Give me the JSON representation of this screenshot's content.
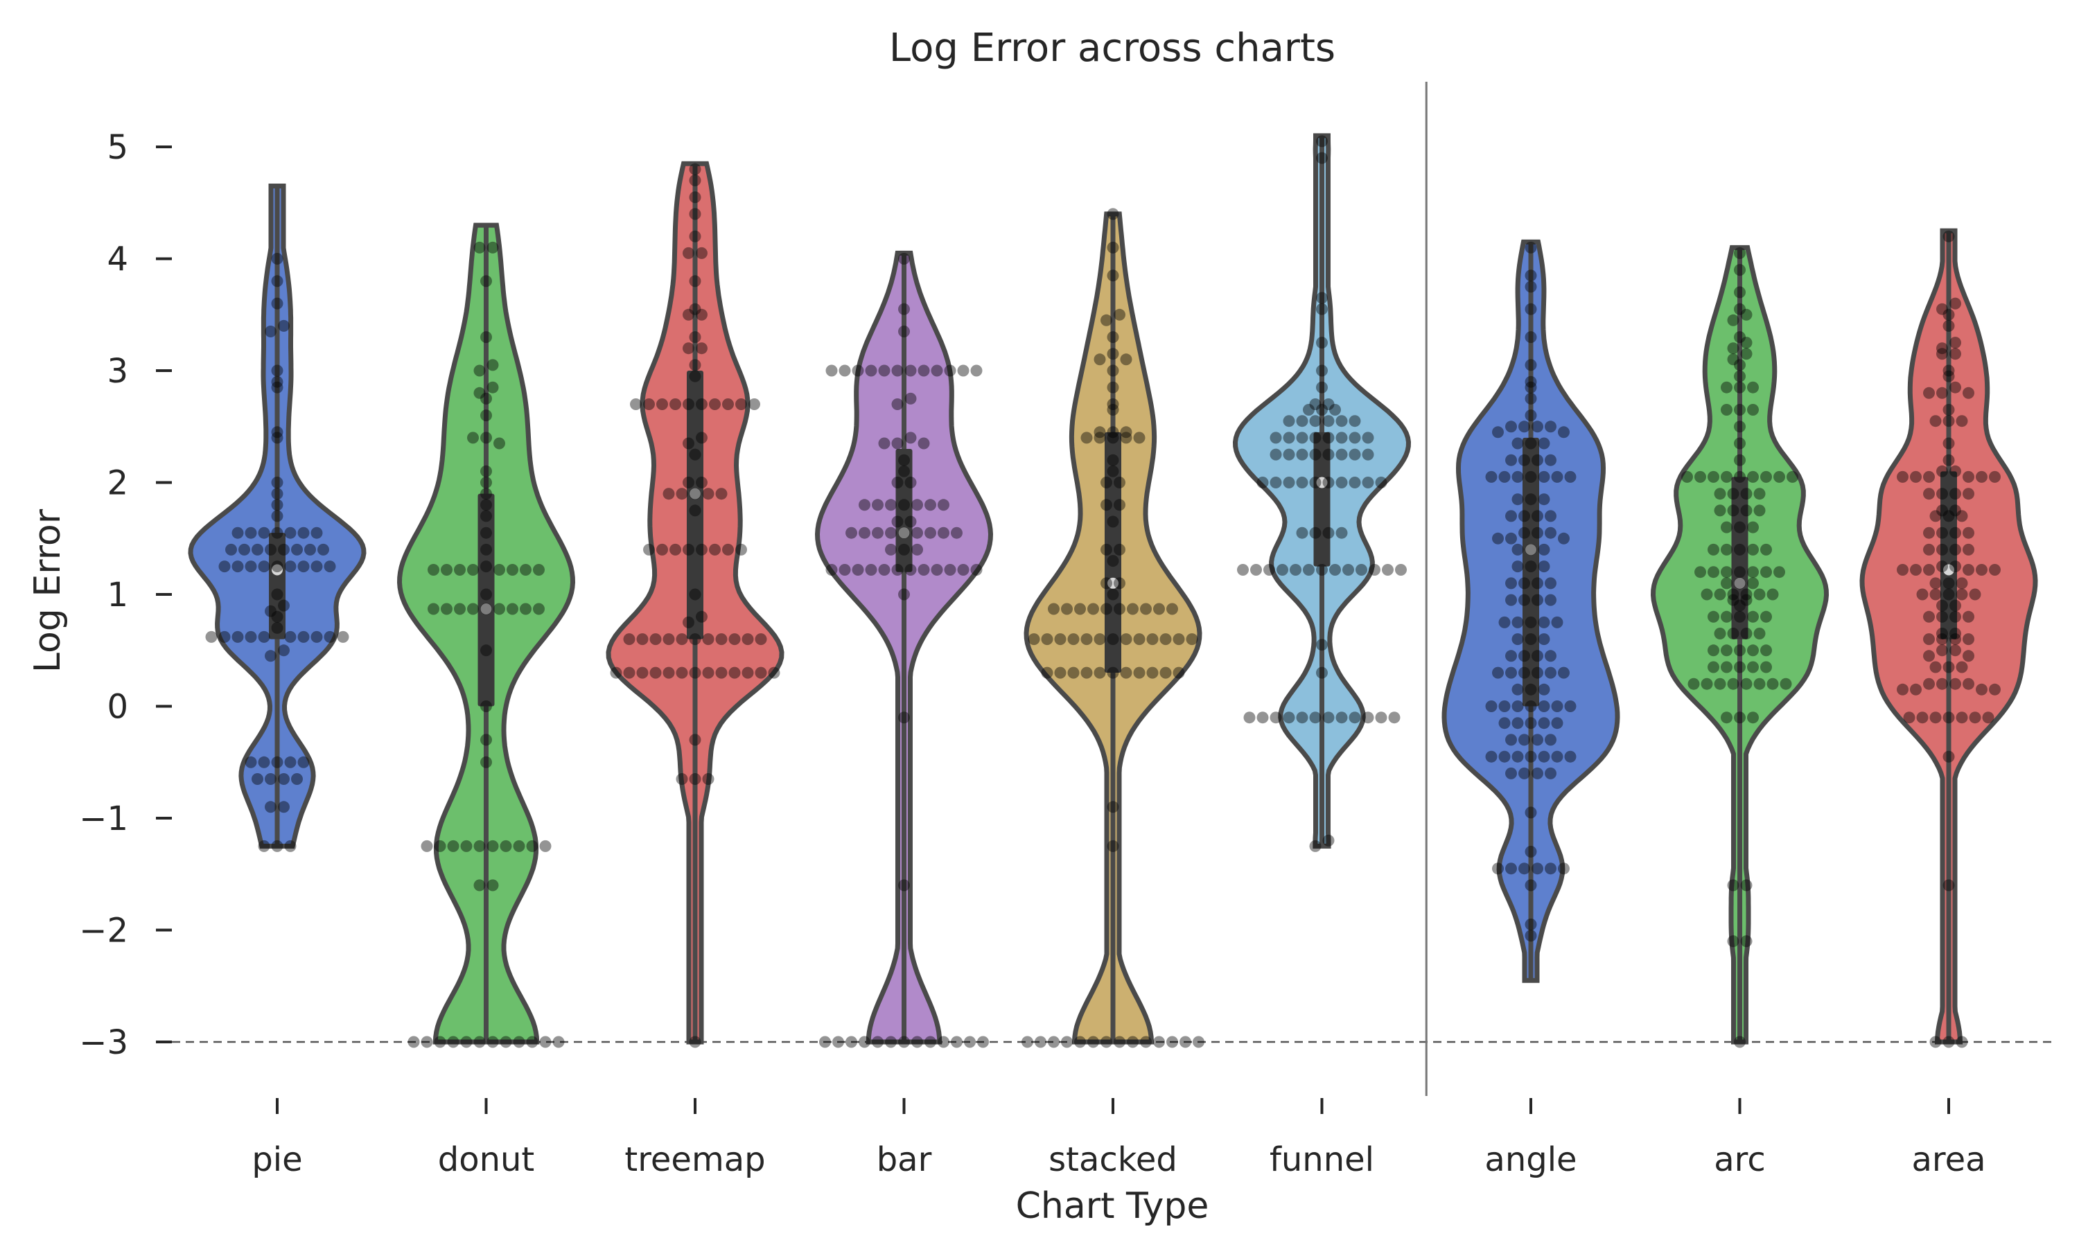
{
  "chart_data": {
    "type": "violin",
    "title": "Log Error across charts",
    "xlabel": "Chart Type",
    "ylabel": "Log Error",
    "ylim": [
      -3.4,
      5.5
    ],
    "yticks": [
      5,
      4,
      3,
      2,
      1,
      0,
      -1,
      -2,
      -3
    ],
    "ytick_labels": [
      "5",
      "4",
      "3",
      "2",
      "1",
      "0",
      "−1",
      "−2",
      "−3"
    ],
    "reference_line_y": -3,
    "group_separator_after": "funnel",
    "grid": false,
    "categories": [
      "pie",
      "donut",
      "treemap",
      "bar",
      "stacked",
      "funnel",
      "angle",
      "arc",
      "area"
    ],
    "series": [
      {
        "category": "pie",
        "color": "#4c72c9",
        "min": -1.25,
        "max": 4.65,
        "q1": 0.6,
        "median": 1.22,
        "q3": 1.55,
        "points": [
          4.0,
          3.8,
          3.6,
          3.4,
          3.35,
          3.0,
          2.9,
          2.85,
          2.45,
          2.4,
          2.0,
          1.9,
          1.8,
          1.7,
          1.55,
          1.55,
          1.55,
          1.55,
          1.55,
          1.55,
          1.55,
          1.4,
          1.4,
          1.4,
          1.4,
          1.4,
          1.4,
          1.4,
          1.4,
          1.25,
          1.25,
          1.25,
          1.25,
          1.25,
          1.25,
          1.25,
          1.25,
          1.25,
          1.0,
          0.9,
          0.85,
          0.8,
          0.7,
          0.62,
          0.62,
          0.62,
          0.62,
          0.62,
          0.62,
          0.62,
          0.62,
          0.62,
          0.62,
          0.5,
          0.45,
          -0.5,
          -0.5,
          -0.5,
          -0.5,
          -0.5,
          -0.65,
          -0.65,
          -0.65,
          -0.65,
          -0.9,
          -0.9,
          -1.25,
          -1.25,
          -1.25
        ]
      },
      {
        "category": "donut",
        "color": "#5cb85c",
        "min": -3.0,
        "max": 4.3,
        "q1": 0.0,
        "median": 0.87,
        "q3": 1.9,
        "points": [
          4.1,
          4.1,
          3.8,
          3.3,
          3.05,
          3.0,
          2.85,
          2.8,
          2.75,
          2.6,
          2.4,
          2.4,
          2.35,
          2.1,
          2.0,
          1.9,
          1.8,
          1.7,
          1.55,
          1.4,
          1.25,
          1.22,
          1.22,
          1.22,
          1.22,
          1.22,
          1.22,
          1.22,
          1.22,
          1.0,
          0.87,
          0.87,
          0.87,
          0.87,
          0.87,
          0.87,
          0.87,
          0.87,
          0.87,
          0.5,
          0.0,
          -0.3,
          -0.5,
          -1.25,
          -1.25,
          -1.25,
          -1.25,
          -1.25,
          -1.25,
          -1.25,
          -1.25,
          -1.25,
          -1.25,
          -1.6,
          -1.6,
          -3.0,
          -3.0,
          -3.0,
          -3.0,
          -3.0,
          -3.0,
          -3.0,
          -3.0,
          -3.0,
          -3.0,
          -3.0,
          -3.0
        ]
      },
      {
        "category": "treemap",
        "color": "#d65f5f",
        "min": -3.0,
        "max": 4.85,
        "q1": 0.6,
        "median": 1.9,
        "q3": 3.0,
        "points": [
          4.8,
          4.7,
          4.55,
          4.4,
          4.2,
          4.05,
          4.05,
          3.8,
          3.55,
          3.5,
          3.5,
          3.3,
          3.2,
          3.2,
          3.05,
          2.95,
          2.7,
          2.7,
          2.7,
          2.7,
          2.7,
          2.7,
          2.7,
          2.7,
          2.7,
          2.7,
          2.4,
          2.35,
          2.25,
          2.0,
          2.0,
          1.9,
          1.9,
          1.9,
          1.9,
          1.9,
          1.75,
          1.4,
          1.4,
          1.4,
          1.4,
          1.4,
          1.4,
          1.4,
          1.4,
          1.0,
          0.8,
          0.75,
          0.6,
          0.6,
          0.6,
          0.6,
          0.6,
          0.6,
          0.6,
          0.6,
          0.6,
          0.6,
          0.6,
          0.3,
          0.3,
          0.3,
          0.3,
          0.3,
          0.3,
          0.3,
          0.3,
          0.3,
          0.3,
          0.3,
          0.3,
          0.3,
          -0.3,
          -0.65,
          -0.65,
          -0.65,
          -3.0
        ]
      },
      {
        "category": "bar",
        "color": "#a97dc4",
        "min": -3.0,
        "max": 4.05,
        "q1": 1.2,
        "median": 1.55,
        "q3": 2.3,
        "points": [
          4.0,
          3.55,
          3.35,
          3.0,
          3.0,
          3.0,
          3.0,
          3.0,
          3.0,
          3.0,
          3.0,
          3.0,
          3.0,
          3.0,
          3.0,
          2.75,
          2.7,
          2.4,
          2.35,
          2.35,
          2.35,
          2.2,
          2.1,
          2.0,
          2.0,
          1.8,
          1.8,
          1.8,
          1.8,
          1.8,
          1.8,
          1.8,
          1.65,
          1.65,
          1.55,
          1.55,
          1.55,
          1.55,
          1.55,
          1.55,
          1.55,
          1.55,
          1.55,
          1.4,
          1.4,
          1.4,
          1.22,
          1.22,
          1.22,
          1.22,
          1.22,
          1.22,
          1.22,
          1.22,
          1.22,
          1.22,
          1.22,
          1.22,
          1.0,
          -0.1,
          -1.6,
          -3.0,
          -3.0,
          -3.0,
          -3.0,
          -3.0,
          -3.0,
          -3.0,
          -3.0,
          -3.0,
          -3.0,
          -3.0,
          -3.0,
          -3.0
        ]
      },
      {
        "category": "stacked",
        "color": "#c7a760",
        "min": -3.0,
        "max": 4.4,
        "q1": 0.3,
        "median": 1.1,
        "q3": 2.45,
        "points": [
          4.4,
          4.1,
          3.85,
          3.5,
          3.45,
          3.3,
          3.15,
          3.1,
          3.1,
          3.0,
          2.85,
          2.7,
          2.65,
          2.45,
          2.45,
          2.45,
          2.4,
          2.4,
          2.4,
          2.4,
          2.4,
          2.2,
          2.1,
          2.0,
          2.0,
          1.8,
          1.8,
          1.65,
          1.4,
          1.4,
          1.3,
          1.1,
          1.1,
          1.0,
          0.87,
          0.87,
          0.87,
          0.87,
          0.87,
          0.87,
          0.87,
          0.87,
          0.87,
          0.87,
          0.6,
          0.6,
          0.6,
          0.6,
          0.6,
          0.6,
          0.6,
          0.6,
          0.6,
          0.6,
          0.6,
          0.6,
          0.6,
          0.3,
          0.3,
          0.3,
          0.3,
          0.3,
          0.3,
          0.3,
          0.3,
          0.3,
          0.3,
          0.3,
          -0.9,
          -1.25,
          -3.0,
          -3.0,
          -3.0,
          -3.0,
          -3.0,
          -3.0,
          -3.0,
          -3.0,
          -3.0,
          -3.0,
          -3.0,
          -3.0,
          -3.0,
          -3.0
        ]
      },
      {
        "category": "funnel",
        "color": "#7fb8d8",
        "min": -1.25,
        "max": 5.1,
        "q1": 1.25,
        "median": 2.0,
        "q3": 2.45,
        "points": [
          5.05,
          4.9,
          3.65,
          3.55,
          3.25,
          3.0,
          2.85,
          2.7,
          2.7,
          2.65,
          2.65,
          2.65,
          2.55,
          2.55,
          2.55,
          2.55,
          2.55,
          2.55,
          2.4,
          2.4,
          2.4,
          2.4,
          2.4,
          2.4,
          2.4,
          2.4,
          2.25,
          2.25,
          2.25,
          2.25,
          2.25,
          2.25,
          2.25,
          2.25,
          2.0,
          2.0,
          2.0,
          2.0,
          2.0,
          2.0,
          2.0,
          2.0,
          2.0,
          2.0,
          1.55,
          1.55,
          1.55,
          1.55,
          1.22,
          1.22,
          1.22,
          1.22,
          1.22,
          1.22,
          1.22,
          1.22,
          1.22,
          1.22,
          1.22,
          1.22,
          1.22,
          0.55,
          0.3,
          -0.1,
          -0.1,
          -0.1,
          -0.1,
          -0.1,
          -0.1,
          -0.1,
          -0.1,
          -0.1,
          -0.1,
          -0.1,
          -0.1,
          -1.2,
          -1.25
        ]
      },
      {
        "category": "angle",
        "color": "#4c72c9",
        "min": -2.45,
        "max": 4.15,
        "q1": 0.0,
        "median": 1.4,
        "q3": 2.4,
        "points": [
          4.1,
          3.85,
          3.75,
          3.55,
          3.3,
          3.05,
          2.9,
          2.85,
          2.75,
          2.6,
          2.5,
          2.5,
          2.5,
          2.5,
          2.45,
          2.45,
          2.35,
          2.35,
          2.35,
          2.2,
          2.2,
          2.2,
          2.2,
          2.05,
          2.05,
          2.05,
          2.05,
          2.05,
          2.05,
          2.05,
          1.85,
          1.85,
          1.85,
          1.7,
          1.7,
          1.7,
          1.7,
          1.55,
          1.55,
          1.55,
          1.5,
          1.5,
          1.5,
          1.4,
          1.4,
          1.4,
          1.25,
          1.25,
          1.25,
          1.1,
          1.1,
          1.1,
          1.1,
          0.95,
          0.95,
          0.95,
          0.95,
          0.75,
          0.75,
          0.75,
          0.75,
          0.75,
          0.6,
          0.6,
          0.6,
          0.45,
          0.45,
          0.45,
          0.45,
          0.3,
          0.3,
          0.3,
          0.3,
          0.3,
          0.3,
          0.15,
          0.15,
          0.15,
          0.0,
          0.0,
          0.0,
          0.0,
          0.0,
          0.0,
          0.0,
          -0.15,
          -0.15,
          -0.15,
          -0.15,
          -0.15,
          -0.3,
          -0.3,
          -0.3,
          -0.3,
          -0.45,
          -0.45,
          -0.45,
          -0.45,
          -0.45,
          -0.45,
          -0.45,
          -0.6,
          -0.6,
          -0.6,
          -0.6,
          -0.95,
          -1.3,
          -1.45,
          -1.45,
          -1.45,
          -1.45,
          -1.45,
          -1.45,
          -1.6,
          -1.95,
          -2.05
        ]
      },
      {
        "category": "arc",
        "color": "#5cb85c",
        "min": -3.0,
        "max": 4.1,
        "q1": 0.6,
        "median": 1.1,
        "q3": 2.05,
        "points": [
          4.05,
          3.9,
          3.7,
          3.55,
          3.5,
          3.45,
          3.3,
          3.25,
          3.2,
          3.15,
          3.1,
          3.05,
          2.95,
          2.85,
          2.85,
          2.85,
          2.65,
          2.65,
          2.65,
          2.5,
          2.35,
          2.2,
          2.05,
          2.05,
          2.05,
          2.05,
          2.05,
          2.05,
          2.05,
          2.05,
          2.05,
          1.9,
          1.9,
          1.9,
          1.9,
          1.75,
          1.75,
          1.75,
          1.75,
          1.6,
          1.6,
          1.6,
          1.4,
          1.4,
          1.4,
          1.4,
          1.4,
          1.2,
          1.2,
          1.2,
          1.2,
          1.2,
          1.2,
          1.2,
          1.1,
          1.1,
          1.1,
          1.0,
          1.0,
          1.0,
          1.0,
          1.0,
          1.0,
          0.95,
          0.95,
          0.9,
          0.8,
          0.8,
          0.8,
          0.8,
          0.8,
          0.65,
          0.65,
          0.65,
          0.65,
          0.5,
          0.5,
          0.5,
          0.5,
          0.5,
          0.35,
          0.35,
          0.35,
          0.35,
          0.35,
          0.2,
          0.2,
          0.2,
          0.2,
          0.2,
          0.2,
          0.2,
          0.2,
          -0.1,
          -0.1,
          -0.1,
          -1.6,
          -1.6,
          -2.1,
          -2.1,
          -3.0
        ]
      },
      {
        "category": "area",
        "color": "#d65f5f",
        "min": -3.0,
        "max": 4.25,
        "q1": 0.6,
        "median": 1.22,
        "q3": 2.1,
        "points": [
          4.2,
          3.6,
          3.55,
          3.5,
          3.4,
          3.25,
          3.2,
          3.15,
          3.15,
          3.0,
          2.95,
          2.85,
          2.8,
          2.8,
          2.8,
          2.65,
          2.55,
          2.55,
          2.55,
          2.35,
          2.2,
          2.1,
          2.1,
          2.05,
          2.05,
          2.05,
          2.05,
          2.05,
          2.05,
          1.9,
          1.9,
          1.9,
          1.9,
          1.75,
          1.75,
          1.7,
          1.7,
          1.7,
          1.55,
          1.55,
          1.55,
          1.55,
          1.4,
          1.4,
          1.4,
          1.4,
          1.25,
          1.25,
          1.22,
          1.22,
          1.22,
          1.22,
          1.22,
          1.22,
          1.1,
          1.1,
          1.1,
          1.0,
          1.0,
          1.0,
          1.0,
          1.0,
          0.9,
          0.9,
          0.8,
          0.8,
          0.8,
          0.8,
          0.65,
          0.65,
          0.6,
          0.6,
          0.6,
          0.6,
          0.5,
          0.5,
          0.45,
          0.45,
          0.35,
          0.35,
          0.35,
          0.2,
          0.2,
          0.2,
          0.2,
          0.15,
          0.15,
          0.15,
          0.15,
          -0.1,
          -0.1,
          -0.1,
          -0.1,
          -0.1,
          -0.1,
          -0.1,
          -0.45,
          -1.6,
          -3.0,
          -3.0,
          -3.0
        ]
      }
    ]
  }
}
